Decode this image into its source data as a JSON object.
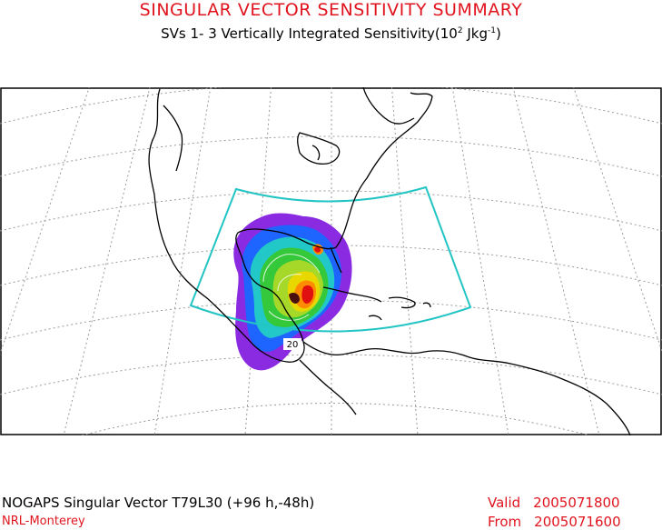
{
  "header": {
    "title": "SINGULAR VECTOR SENSITIVITY SUMMARY",
    "subtitle_prefix": "SVs 1- 3  Vertically Integrated Sensitivity(10",
    "subtitle_exp": "2",
    "subtitle_units": " Jkg",
    "subtitle_units_exp": "-1",
    "subtitle_close": ")"
  },
  "map": {
    "contour_label": "20",
    "colors": {
      "land_outline": "#000000",
      "graticule": "#9a9a9a",
      "domain_box": "#22c4c4",
      "purple": "#8a2be2",
      "blue": "#1e64ff",
      "cyan": "#22c8c8",
      "green": "#35c83a",
      "yellow": "#e8d800",
      "orange": "#ff8c00",
      "red": "#e01010"
    }
  },
  "footer": {
    "model_line": "NOGAPS Singular Vector T79L30 (+96 h,-48h)",
    "org": "NRL-Monterey",
    "valid_label": "Valid",
    "valid_value": "2005071800",
    "from_label": "From",
    "from_value": "2005071600"
  }
}
